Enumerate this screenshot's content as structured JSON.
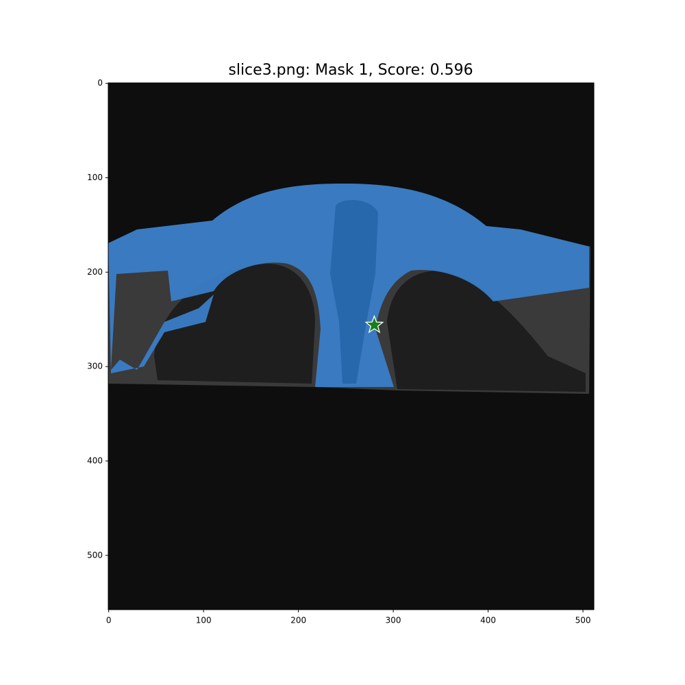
{
  "chart_data": {
    "type": "scatter",
    "title": "slice3.png: Mask 1, Score: 0.596",
    "xlim": [
      -0.5,
      511.5
    ],
    "ylim": [
      557.5,
      -0.5
    ],
    "xticks": [
      0,
      100,
      200,
      300,
      400,
      500
    ],
    "yticks": [
      0,
      100,
      200,
      300,
      400,
      500
    ],
    "series": [
      {
        "color": "#1a7f1a",
        "marker": "star",
        "x": [
          280
        ],
        "values": [
          256
        ]
      }
    ]
  }
}
